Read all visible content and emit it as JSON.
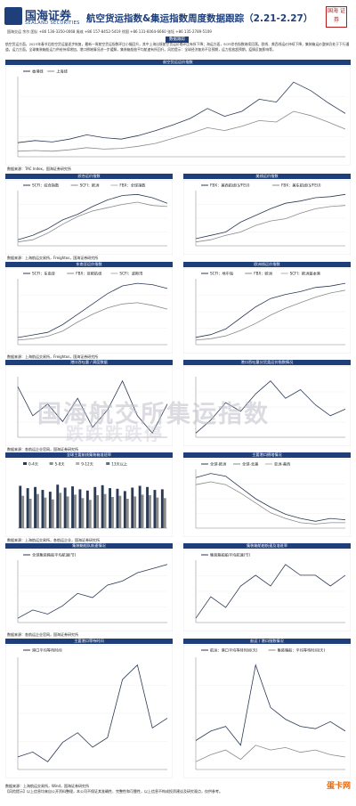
{
  "header": {
    "logo_cn": "国海证券",
    "logo_en": "SEALAND SECURITIES",
    "title": "航空货运指数&集运指数周度数据跟踪（2.21-2.27）",
    "seal_text": "国海 证券",
    "contact": "国海交运    余尔 团队 +86 136-3350-0068  周成 +86 157-8452-5419  徐国 +86 131-6064-6660  张钰 +86 135-2789-5109",
    "tag": "数据跟踪"
  },
  "intro": "航空货运方面，2023年春节后航空货运量逐步恢复，最新一周航空货运指数环比小幅回升，其中上海出境航空货运价格环比有所下降；海运方面，SCFI综合指数继续回落，欧线、美西线运价持续下降，集装箱运价整体仍处于下行通道。运力方面，全球集装箱船运力供给持续增加，港口拥堵情况进一步缓解，集装箱船舶平均航速有所回升。风险提示：全球经济复苏不及预期，运力投放超预期，疫情反复影响等。",
  "sections": [
    {
      "title": "航空货运运价指数",
      "source": "数据来源：TAC Index，国海证券研究所"
    },
    {
      "title": "综合运价指数",
      "source": ""
    },
    {
      "title": "美线运价指数",
      "source": ""
    },
    {
      "title": "东南亚运价指数",
      "source": "数据来源：上海航运交易所，Freightos，国海证券研究所"
    },
    {
      "title": "欧洲线运价指数",
      "source": ""
    },
    {
      "title": "港口吞吐量 / 周度数据",
      "source": ""
    },
    {
      "title": "港口吞吐量分货类运价指数情况",
      "source": "数据来源：各航运企业官网，国海证券研究所"
    },
    {
      "title": "全球主要航线集装箱准班率",
      "source": "数据来源：上海航运交易所，各航运企业，国海证券研究所"
    },
    {
      "title": "主要港口拥堵情况",
      "source": ""
    },
    {
      "title": "集装箱船队航速情况",
      "source": "数据来源：各航运企业官网，国海证券研究所"
    },
    {
      "title": "集装箱船舶航速及准班率",
      "source": ""
    },
    {
      "title": "主要港口等待时间",
      "source": "数据来源：上海航运交易所，Wind，国海证券研究所"
    },
    {
      "title": "航运 / 港口指数情况",
      "source": ""
    }
  ],
  "legends": {
    "air": [
      "香港线",
      "上海线"
    ],
    "scfi": [
      "SCFI：综合指数",
      "SCFI：欧洲",
      "FBX：全球指数"
    ],
    "us": [
      "FBX：美西航线($/FEU)",
      "FBX：美东航线($/FEU)"
    ],
    "sea": [
      "SCFI：东南亚",
      "FBX：亚欧航线",
      "SCFI：波斯湾"
    ],
    "eu": [
      "SCFI：地中海",
      "FBX：欧洲",
      "SCFI：欧洲基本港"
    ],
    "bars": [
      "0-4天",
      "5-8天",
      "9-12天",
      "13天以上"
    ],
    "ontime": [
      "全球-欧洲",
      "全球-北美",
      "亚洲-美西"
    ],
    "speed": [
      "全球集装箱船平均航速(节)"
    ],
    "wait": [
      "集装箱船舶平均航速(节)"
    ],
    "port": [
      "港口平均等待时间"
    ],
    "last_left": [
      "集装箱指数"
    ],
    "last_right": [
      "航运：港口平均等待时间(天)",
      "集装箱船：平均等待时间(天)",
      "港口：周转效率"
    ]
  },
  "footer": "数据来源：上海航运交易所，Wind，国海证券研究所\n【风险提示】以上信息均来自公开资料整理，本公司不保证其准确性、完整性和可靠性，以上信息不构成投资建议及研究观点，仅供参考。",
  "stamp": "蛋卡网",
  "watermark": [
    "国海航交所集运指数",
    "跌跌跌跌停"
  ],
  "chart_data": [
    {
      "type": "line",
      "title": "航空货运运价指数",
      "series": [
        {
          "name": "香港线",
          "values": [
            3.1,
            3.4,
            3.2,
            3.6,
            4.2,
            3.8,
            3.6,
            4.1,
            4.8,
            5.6,
            6.5,
            7.9,
            6.8,
            7.5,
            9.2,
            8.8,
            11.6,
            10.4,
            8.7,
            7.2
          ]
        },
        {
          "name": "上海线",
          "values": [
            1.9,
            2.0,
            1.9,
            2.1,
            2.4,
            2.2,
            2.3,
            2.6,
            3.0,
            3.7,
            4.4,
            5.2,
            4.8,
            5.4,
            6.2,
            6.0,
            7.5,
            6.9,
            6.0,
            5.0
          ]
        }
      ]
    },
    {
      "type": "line",
      "title": "综合运价指数",
      "series": [
        {
          "name": "SCFI：综合指数",
          "values": [
            1.0,
            1.4,
            2.0,
            2.8,
            3.3,
            4.0,
            4.6,
            5.0,
            5.1,
            4.8,
            4.3
          ]
        },
        {
          "name": "FBX：全球指数",
          "values": [
            0.8,
            1.0,
            1.6,
            2.4,
            3.1,
            3.6,
            3.9,
            4.2,
            4.4,
            4.1,
            4.0
          ]
        }
      ]
    },
    {
      "type": "line",
      "title": "美线运价指数",
      "series": [
        {
          "name": "FBX：美西航线($/FEU)",
          "values": [
            0.9,
            1.2,
            1.5,
            2.4,
            3.0,
            3.6,
            4.1,
            4.3,
            4.6,
            4.7,
            4.9
          ]
        },
        {
          "name": "FBX：美东航线($/FEU)",
          "values": [
            0.6,
            0.8,
            1.2,
            1.5,
            2.1,
            2.5,
            2.7,
            3.2,
            3.6,
            3.8,
            3.9
          ]
        }
      ]
    },
    {
      "type": "line",
      "title": "东南亚运价指数",
      "series": [
        {
          "name": "SCFI：东南亚",
          "values": [
            0.8,
            1.0,
            1.2,
            1.8,
            2.6,
            3.4,
            4.2,
            4.8,
            5.0,
            4.9,
            4.6
          ]
        },
        {
          "name": "FBX：亚欧航线",
          "values": [
            0.6,
            0.7,
            0.9,
            1.3,
            2.0,
            2.6,
            3.1,
            3.4,
            3.5,
            3.3,
            3.0
          ]
        }
      ]
    },
    {
      "type": "line",
      "title": "欧洲线运价指数",
      "series": [
        {
          "name": "SCFI：地中海",
          "values": [
            0.7,
            0.9,
            1.3,
            2.1,
            2.9,
            3.5,
            3.8,
            4.0,
            4.3,
            4.4,
            4.6
          ]
        },
        {
          "name": "FBX：欧洲",
          "values": [
            0.5,
            0.6,
            0.8,
            1.2,
            1.7,
            2.3,
            2.8,
            3.2,
            3.6,
            3.9,
            4.1
          ]
        }
      ]
    },
    {
      "type": "line",
      "title": "港口吞吐量 / 周度数据",
      "series": [
        {
          "name": "港口吞吐量",
          "values": [
            4.1,
            3.6,
            3.8,
            3.5,
            3.9,
            3.4,
            3.7,
            4.2,
            3.6,
            3.3,
            3.8
          ]
        }
      ]
    },
    {
      "type": "line",
      "title": "港口吞吐量分货类运价指数情况",
      "series": [
        {
          "name": "运价指数",
          "values": [
            2.0,
            2.6,
            3.4,
            3.0,
            3.8,
            4.4,
            3.6,
            4.0,
            3.3,
            2.8,
            3.1
          ]
        }
      ]
    },
    {
      "type": "bar",
      "title": "全球主要航线集装箱准班率",
      "series": [
        {
          "name": "0-4天",
          "values": [
            72,
            68,
            70,
            65,
            62,
            74,
            69,
            71,
            66,
            64,
            70,
            73,
            68,
            67,
            63,
            69,
            72,
            70,
            65,
            66
          ]
        },
        {
          "name": "5-8天",
          "values": [
            55,
            50,
            58,
            52,
            49,
            60,
            54,
            57,
            51,
            48,
            56,
            58,
            53,
            55,
            50,
            54,
            57,
            56,
            52,
            51
          ]
        }
      ]
    },
    {
      "type": "line",
      "title": "主要港口拥堵情况",
      "series": [
        {
          "name": "全球-欧洲",
          "values": [
            4.5,
            4.8,
            4.6,
            3.8,
            3.0,
            2.4,
            1.9,
            1.6,
            1.4,
            1.6,
            1.5
          ]
        },
        {
          "name": "全球-北美",
          "values": [
            4.0,
            4.2,
            4.0,
            3.4,
            2.7,
            2.0,
            1.6,
            1.3,
            1.2,
            1.3,
            1.3
          ]
        }
      ]
    },
    {
      "type": "line",
      "title": "集装箱船队航速情况",
      "series": [
        {
          "name": "全球集装箱船平均航速(节)",
          "values": [
            14.2,
            14.3,
            14.25,
            14.35,
            14.5,
            14.45,
            14.6,
            14.65,
            14.75,
            14.8,
            14.85
          ]
        }
      ]
    },
    {
      "type": "line",
      "title": "集装箱船舶航速及准班率",
      "series": [
        {
          "name": "集装箱船舶平均航速(节)",
          "values": [
            13.6,
            13.8,
            13.7,
            13.9,
            14.0,
            13.9,
            14.1,
            14.0,
            14.0,
            13.9,
            14.0
          ]
        }
      ]
    },
    {
      "type": "line",
      "title": "主要港口等待时间",
      "series": [
        {
          "name": "港口平均等待时间",
          "values": [
            2.0,
            2.1,
            1.9,
            2.3,
            2.5,
            2.2,
            2.4,
            3.6,
            3.9,
            2.6,
            2.8
          ]
        }
      ]
    },
    {
      "type": "line",
      "title": "航运 / 港口指数情况",
      "series": [
        {
          "name": "航运：港口平均等待时间(天)",
          "values": [
            3.0,
            3.4,
            3.6,
            2.8,
            6.2,
            4.4,
            3.9,
            3.6,
            3.5,
            3.8,
            3.4
          ]
        },
        {
          "name": "集装箱船：平均等待时间(天)",
          "values": [
            2.1,
            2.4,
            2.6,
            2.2,
            2.8,
            2.6,
            2.7,
            2.5,
            2.6,
            2.4,
            2.3
          ]
        }
      ]
    }
  ]
}
